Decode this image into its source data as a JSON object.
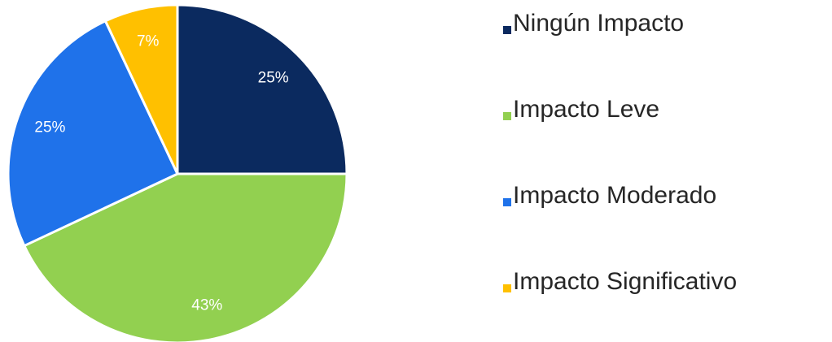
{
  "chart_data": {
    "type": "pie",
    "categories": [
      "Ningún Impacto",
      "Impacto Leve",
      "Impacto Moderado",
      "Impacto Significativo"
    ],
    "values": [
      25,
      43,
      25,
      7
    ],
    "value_labels": [
      "25%",
      "43%",
      "25%",
      "7%"
    ],
    "colors": [
      "#0b2a5f",
      "#92d050",
      "#1f72ea",
      "#ffc000"
    ],
    "legend": "right"
  }
}
